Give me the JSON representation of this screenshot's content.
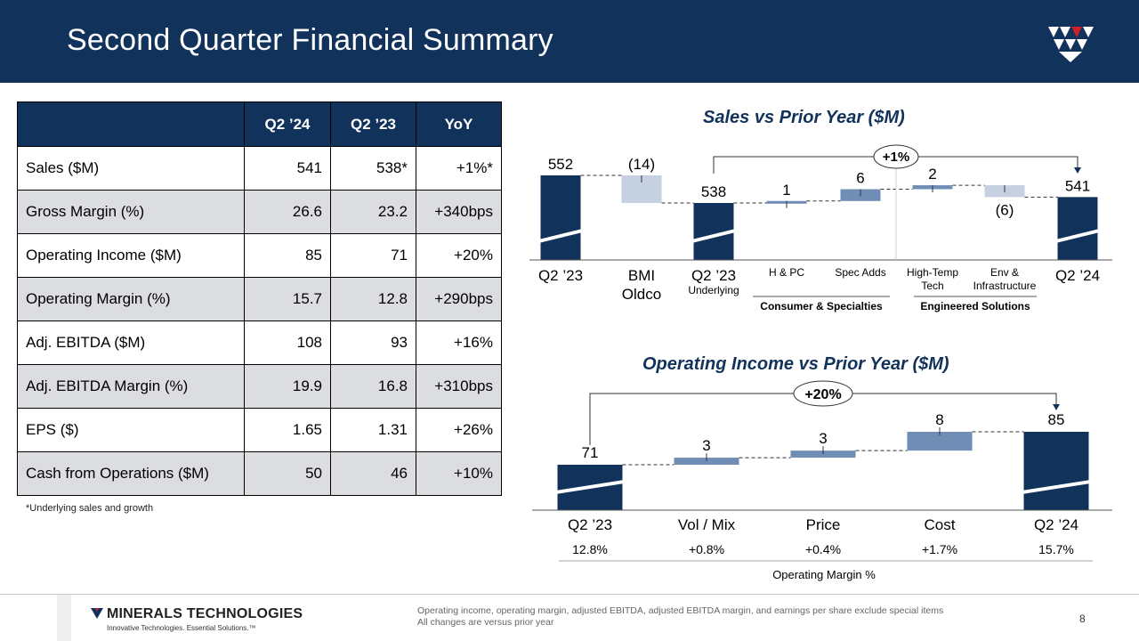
{
  "header": {
    "title": "Second Quarter Financial Summary"
  },
  "table": {
    "columns": [
      "",
      "Q2 ’24",
      "Q2 ’23",
      "YoY"
    ],
    "rows": [
      {
        "label": "Sales ($M)",
        "q224": "541",
        "q223": "538*",
        "yoy": "+1%*"
      },
      {
        "label": "Gross Margin (%)",
        "q224": "26.6",
        "q223": "23.2",
        "yoy": "+340bps"
      },
      {
        "label": "Operating Income ($M)",
        "q224": "85",
        "q223": "71",
        "yoy": "+20%"
      },
      {
        "label": "Operating Margin (%)",
        "q224": "15.7",
        "q223": "12.8",
        "yoy": "+290bps"
      },
      {
        "label": "Adj. EBITDA ($M)",
        "q224": "108",
        "q223": "93",
        "yoy": "+16%"
      },
      {
        "label": "Adj. EBITDA Margin (%)",
        "q224": "19.9",
        "q223": "16.8",
        "yoy": "+310bps"
      },
      {
        "label": "EPS ($)",
        "q224": "1.65",
        "q223": "1.31",
        "yoy": "+26%"
      },
      {
        "label": "Cash from Operations ($M)",
        "q224": "50",
        "q223": "46",
        "yoy": "+10%"
      }
    ],
    "footnote": "*Underlying sales and growth"
  },
  "chart_data": [
    {
      "type": "bar",
      "subtype": "waterfall",
      "title": "Sales vs Prior Year ($M)",
      "categories": [
        "Q2 ’23",
        "BMI Oldco",
        "Q2 ’23 Underlying",
        "H & PC",
        "Spec Adds",
        "High-Temp Tech",
        "Env & Infrastructure",
        "Q2 ’24"
      ],
      "values": [
        552,
        -14,
        538,
        1,
        6,
        2,
        -6,
        541
      ],
      "data_labels": [
        "552",
        "(14)",
        "538",
        "1",
        "6",
        "2",
        "(6)",
        "541"
      ],
      "groups": [
        {
          "name": "Consumer & Specialties",
          "members": [
            "H & PC",
            "Spec Adds"
          ]
        },
        {
          "name": "Engineered Solutions",
          "members": [
            "High-Temp Tech",
            "Env & Infrastructure"
          ]
        }
      ],
      "growth_callout": "+1%",
      "colors": {
        "total": "#11335b",
        "negative": "#c5d0e0",
        "positive": "#6f8db5"
      }
    },
    {
      "type": "bar",
      "subtype": "waterfall",
      "title": "Operating Income vs Prior Year ($M)",
      "categories": [
        "Q2 ’23",
        "Vol / Mix",
        "Price",
        "Cost",
        "Q2 ’24"
      ],
      "values": [
        71,
        3,
        3,
        8,
        85
      ],
      "data_labels": [
        "71",
        "3",
        "3",
        "8",
        "85"
      ],
      "margins": [
        "12.8%",
        "+0.8%",
        "+0.4%",
        "+1.7%",
        "15.7%"
      ],
      "margin_label": "Operating Margin %",
      "growth_callout": "+20%",
      "colors": {
        "total": "#11335b",
        "positive": "#6f8db5"
      }
    }
  ],
  "footer": {
    "brand": "MINERALS TECHNOLOGIES",
    "tagline": "Innovative Technologies. Essential Solutions.™",
    "note1": "Operating income, operating margin, adjusted EBITDA, adjusted EBITDA margin, and earnings per share exclude special items",
    "note2": "All changes are versus prior year",
    "page": "8"
  }
}
